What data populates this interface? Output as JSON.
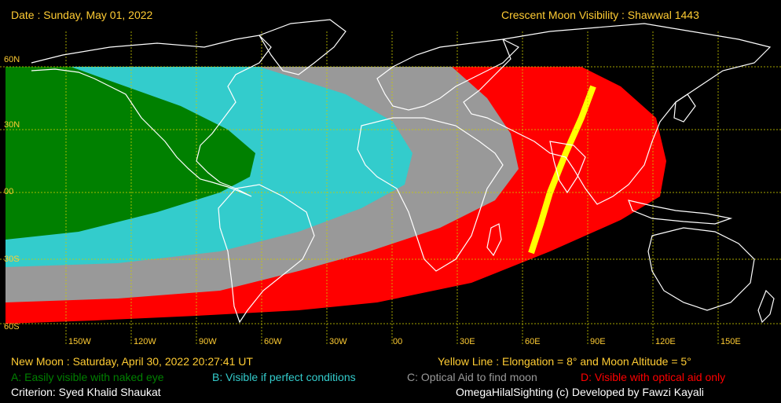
{
  "header": {
    "date": "Date : Sunday, May 01, 2022",
    "title": "Crescent Moon Visibility : Shawwal  1443"
  },
  "map": {
    "lat_labels": [
      "60N",
      "30N",
      "00",
      "30S",
      "60S"
    ],
    "lon_labels": [
      "150W",
      "120W",
      "90W",
      "60W",
      "30W",
      "00",
      "30E",
      "60E",
      "90E",
      "120E",
      "150E"
    ],
    "zone_colors": {
      "A": "#008000",
      "B": "#33cccc",
      "C": "#999999",
      "D": "#ff0000",
      "yellow_line": "#ffff00",
      "grid": "#cccc00"
    }
  },
  "footer": {
    "new_moon": "New Moon : Saturday, April 30, 2022  20:27:41  UT",
    "yellow_line": "Yellow Line : Elongation = 8° and Moon Altitude = 5°",
    "legend_a": "A: Easily visible with naked eye",
    "legend_b": "B: Visible if perfect conditions",
    "legend_c": "C: Optical Aid to find moon",
    "legend_d": "D: Visible with optical aid only",
    "criterion": "Criterion: Syed Khalid Shaukat",
    "credit": "OmegaHilalSighting  (c)  Developed by Fawzi Kayali"
  }
}
